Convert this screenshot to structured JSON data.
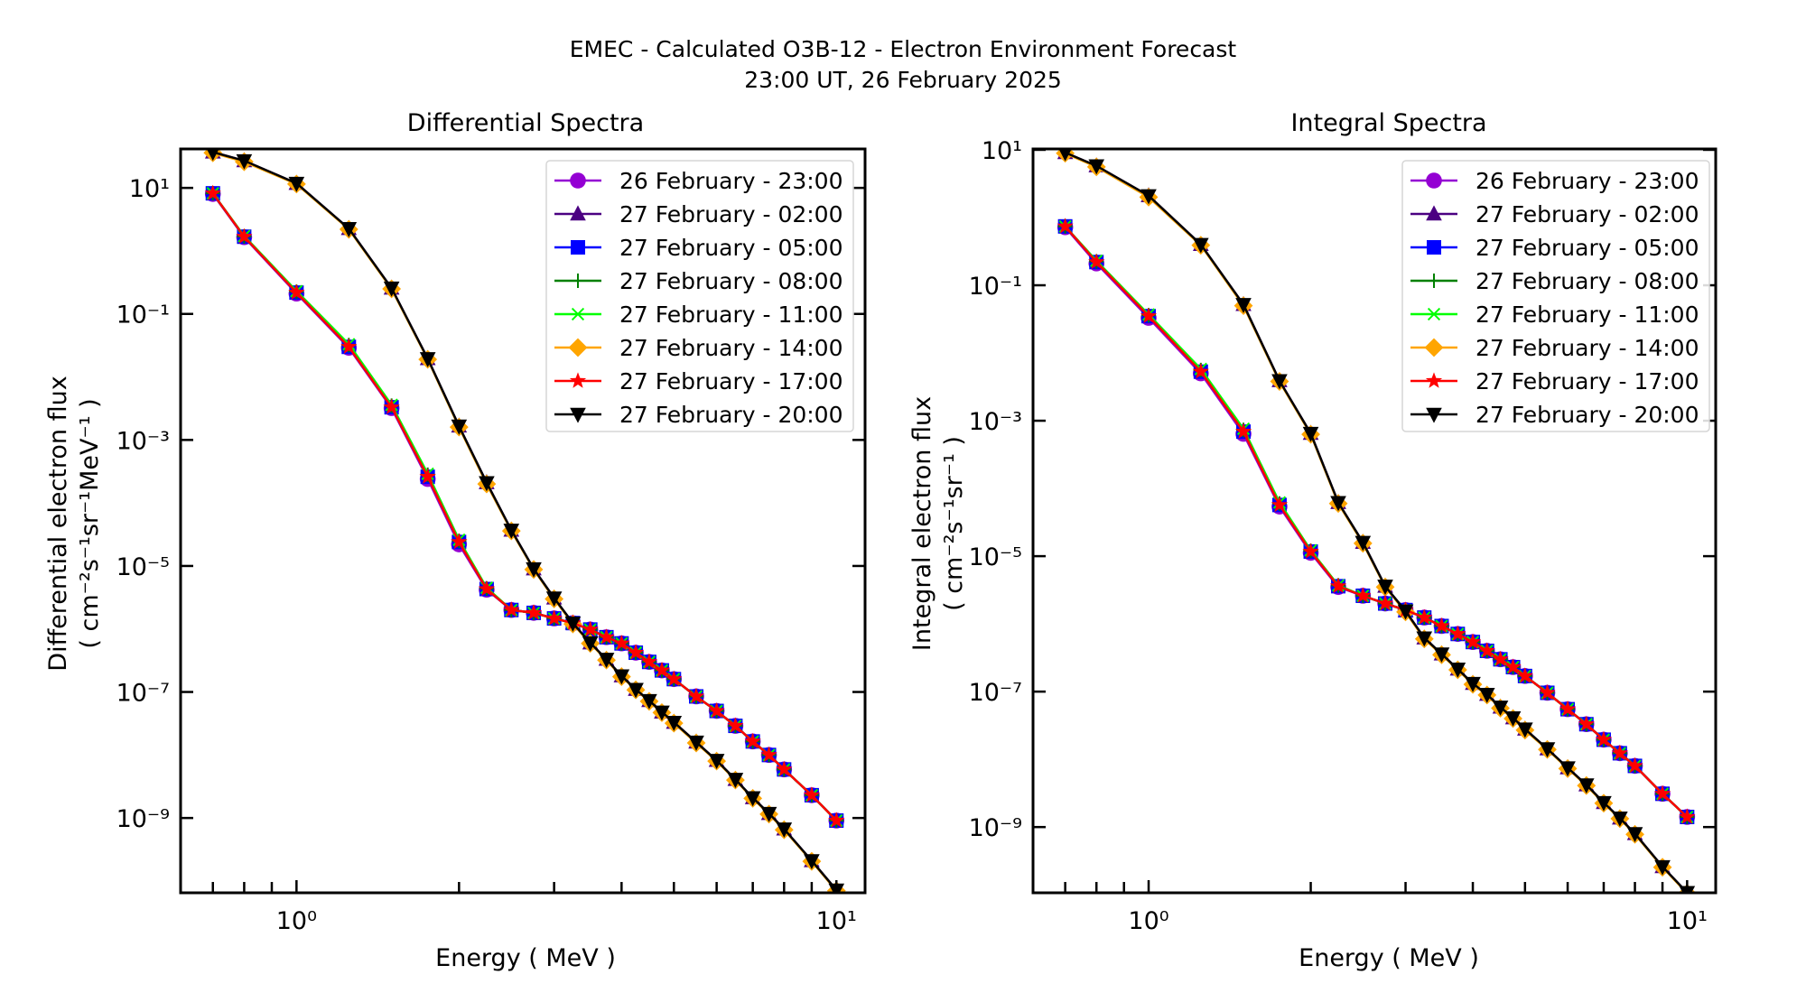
{
  "figure": {
    "title_line1": "EMEC - Calculated O3B-12 - Electron Environment Forecast",
    "title_line2": "23:00 UT, 26 February 2025"
  },
  "series_styles": [
    {
      "name": "26 February - 23:00",
      "color": "#9400D3",
      "marker": "circle"
    },
    {
      "name": "27 February - 02:00",
      "color": "#4B0082",
      "marker": "triangle-up"
    },
    {
      "name": "27 February - 05:00",
      "color": "#0000FF",
      "marker": "square"
    },
    {
      "name": "27 February - 08:00",
      "color": "#008000",
      "marker": "plus"
    },
    {
      "name": "27 February - 11:00",
      "color": "#00FF00",
      "marker": "x"
    },
    {
      "name": "27 February - 14:00",
      "color": "#FFA500",
      "marker": "diamond"
    },
    {
      "name": "27 February - 17:00",
      "color": "#FF0000",
      "marker": "star"
    },
    {
      "name": "27 February - 20:00",
      "color": "#000000",
      "marker": "triangle-down"
    }
  ],
  "chart_data": [
    {
      "type": "line",
      "title": "Differential Spectra",
      "xlabel": "Energy ( MeV )",
      "ylabel_line1": "Differential electron flux",
      "ylabel_line2": "( cm⁻²s⁻¹sr⁻¹MeV⁻¹ )",
      "xscale": "log",
      "yscale": "log",
      "xlim": [
        0.61,
        11.3
      ],
      "ylim": [
        6.5e-11,
        41.5
      ],
      "xticks": [
        {
          "value": 1,
          "label": "10⁰"
        },
        {
          "value": 10,
          "label": "10¹"
        }
      ],
      "yticks": [
        {
          "value": 10,
          "label": "10¹"
        },
        {
          "value": 0.1,
          "label": "10⁻¹"
        },
        {
          "value": 0.001,
          "label": "10⁻³"
        },
        {
          "value": 1e-05,
          "label": "10⁻⁵"
        },
        {
          "value": 1e-07,
          "label": "10⁻⁷"
        },
        {
          "value": 1e-09,
          "label": "10⁻⁹"
        }
      ],
      "grid": false,
      "legend_position": "top-right",
      "x": [
        0.7,
        0.8,
        1.0,
        1.25,
        1.5,
        1.75,
        2.0,
        2.25,
        2.5,
        2.75,
        3.0,
        3.25,
        3.5,
        3.75,
        4.0,
        4.25,
        4.5,
        4.75,
        5.0,
        5.5,
        6.0,
        6.5,
        7.0,
        7.5,
        8.0,
        9.0,
        10.0
      ],
      "series": [
        {
          "name": "26 February - 23:00",
          "values": [
            8.0,
            1.65,
            0.21,
            0.029,
            0.0032,
            0.00024,
            2.2e-05,
            4.2e-06,
            2e-06,
            1.8e-06,
            1.47e-06,
            1.24e-06,
            9.8e-07,
            7.4e-07,
            5.9e-07,
            4.2e-07,
            3e-07,
            2.2e-07,
            1.6e-07,
            8.5e-08,
            5e-08,
            2.9e-08,
            1.64e-08,
            1e-08,
            5.9e-09,
            2.3e-09,
            9.1e-10
          ]
        },
        {
          "name": "27 February - 02:00",
          "values": [
            37,
            27,
            11.8,
            2.26,
            0.257,
            0.0195,
            0.00166,
            0.00021,
            3.7e-05,
            9e-06,
            3.1e-06,
            1.24e-06,
            6e-07,
            3.3e-07,
            1.8e-07,
            1.1e-07,
            7.3e-08,
            4.8e-08,
            3.3e-08,
            1.6e-08,
            8.2e-09,
            4.1e-09,
            2.1e-09,
            1.18e-09,
            6.7e-10,
            2.1e-10,
            7.2e-11
          ]
        },
        {
          "name": "27 February - 05:00",
          "values": [
            8.2,
            1.68,
            0.218,
            0.03,
            0.0033,
            0.00026,
            2.4e-05,
            4.3e-06,
            2e-06,
            1.8e-06,
            1.47e-06,
            1.24e-06,
            9.8e-07,
            7.4e-07,
            5.9e-07,
            4.2e-07,
            3e-07,
            2.2e-07,
            1.6e-07,
            8.5e-08,
            5e-08,
            2.9e-08,
            1.64e-08,
            1e-08,
            5.9e-09,
            2.3e-09,
            9.1e-10
          ]
        },
        {
          "name": "27 February - 08:00",
          "values": [
            8.2,
            1.7,
            0.225,
            0.032,
            0.0035,
            0.00028,
            2.5e-05,
            4.4e-06,
            2e-06,
            1.8e-06,
            1.47e-06,
            1.24e-06,
            9.8e-07,
            7.4e-07,
            5.9e-07,
            4.2e-07,
            3e-07,
            2.2e-07,
            1.6e-07,
            8.5e-08,
            5e-08,
            2.9e-08,
            1.64e-08,
            1e-08,
            5.9e-09,
            2.3e-09,
            9.1e-10
          ]
        },
        {
          "name": "27 February - 11:00",
          "values": [
            8.2,
            1.72,
            0.23,
            0.033,
            0.0036,
            0.00029,
            2.6e-05,
            4.5e-06,
            2e-06,
            1.8e-06,
            1.47e-06,
            1.24e-06,
            9.8e-07,
            7.4e-07,
            5.9e-07,
            4.2e-07,
            3e-07,
            2.2e-07,
            1.6e-07,
            8.5e-08,
            5e-08,
            2.9e-08,
            1.64e-08,
            1e-08,
            5.9e-09,
            2.3e-09,
            9.1e-10
          ]
        },
        {
          "name": "27 February - 14:00",
          "values": [
            36,
            26,
            11.5,
            2.2,
            0.25,
            0.019,
            0.0016,
            0.0002,
            3.6e-05,
            8.8e-06,
            3e-06,
            1.2e-06,
            5.9e-07,
            3.2e-07,
            1.75e-07,
            1.08e-07,
            7.1e-08,
            4.7e-08,
            3.2e-08,
            1.55e-08,
            8e-09,
            4e-09,
            2.05e-09,
            1.15e-09,
            6.5e-10,
            2.05e-10,
            7e-11
          ]
        },
        {
          "name": "27 February - 17:00",
          "values": [
            8.2,
            1.68,
            0.218,
            0.03,
            0.0033,
            0.00026,
            2.4e-05,
            4.3e-06,
            2e-06,
            1.8e-06,
            1.47e-06,
            1.24e-06,
            9.8e-07,
            7.4e-07,
            5.9e-07,
            4.2e-07,
            3e-07,
            2.2e-07,
            1.6e-07,
            8.5e-08,
            5e-08,
            2.9e-08,
            1.64e-08,
            1e-08,
            5.9e-09,
            2.3e-09,
            9.1e-10
          ]
        },
        {
          "name": "27 February - 20:00",
          "values": [
            37,
            27,
            11.8,
            2.26,
            0.257,
            0.0195,
            0.00166,
            0.00021,
            3.7e-05,
            9e-06,
            3.1e-06,
            1.24e-06,
            6e-07,
            3.3e-07,
            1.8e-07,
            1.1e-07,
            7.3e-08,
            4.8e-08,
            3.3e-08,
            1.6e-08,
            8.2e-09,
            4.1e-09,
            2.1e-09,
            1.18e-09,
            6.7e-10,
            2.1e-10,
            7.2e-11
          ]
        }
      ]
    },
    {
      "type": "line",
      "title": "Integral Spectra",
      "xlabel": "Energy ( MeV )",
      "ylabel_line1": "Integral electron flux",
      "ylabel_line2": "( cm⁻²s⁻¹sr⁻¹ )",
      "xscale": "log",
      "yscale": "log",
      "xlim": [
        0.61,
        11.3
      ],
      "ylim": [
        1.07e-10,
        10.3
      ],
      "xticks": [
        {
          "value": 1,
          "label": "10⁰"
        },
        {
          "value": 10,
          "label": "10¹"
        }
      ],
      "yticks": [
        {
          "value": 10,
          "label": "10¹"
        },
        {
          "value": 0.1,
          "label": "10⁻¹"
        },
        {
          "value": 0.001,
          "label": "10⁻³"
        },
        {
          "value": 1e-05,
          "label": "10⁻⁵"
        },
        {
          "value": 1e-07,
          "label": "10⁻⁷"
        },
        {
          "value": 1e-09,
          "label": "10⁻⁹"
        }
      ],
      "grid": false,
      "legend_position": "top-right",
      "x": [
        0.7,
        0.8,
        1.0,
        1.25,
        1.5,
        1.75,
        2.0,
        2.25,
        2.5,
        2.75,
        3.0,
        3.25,
        3.5,
        3.75,
        4.0,
        4.25,
        4.5,
        4.75,
        5.0,
        5.5,
        6.0,
        6.5,
        7.0,
        7.5,
        8.0,
        9.0,
        10.0
      ],
      "series": [
        {
          "name": "26 February - 23:00",
          "values": [
            0.72,
            0.21,
            0.033,
            0.005,
            0.00064,
            5.4e-05,
            1.12e-05,
            3.5e-06,
            2.6e-06,
            2e-06,
            1.6e-06,
            1.24e-06,
            9.3e-07,
            7.1e-07,
            5.4e-07,
            4e-07,
            3e-07,
            2.3e-07,
            1.7e-07,
            9.6e-08,
            5.5e-08,
            3.3e-08,
            1.95e-08,
            1.23e-08,
            8e-09,
            3.1e-09,
            1.41e-09
          ]
        },
        {
          "name": "27 February - 02:00",
          "values": [
            9.1,
            5.8,
            2.1,
            0.4,
            0.052,
            0.0039,
            0.00065,
            6.2e-05,
            1.6e-05,
            3.6e-06,
            1.55e-06,
            6.2e-07,
            3.6e-07,
            2.15e-07,
            1.32e-07,
            9.1e-08,
            5.9e-08,
            4.1e-08,
            2.8e-08,
            1.43e-08,
            7.5e-09,
            4.2e-09,
            2.3e-09,
            1.36e-09,
            8e-10,
            2.6e-10,
            1.08e-10
          ]
        },
        {
          "name": "27 February - 05:00",
          "values": [
            0.74,
            0.22,
            0.035,
            0.0053,
            0.00069,
            5.7e-05,
            1.17e-05,
            3.6e-06,
            2.6e-06,
            2e-06,
            1.6e-06,
            1.24e-06,
            9.3e-07,
            7.1e-07,
            5.4e-07,
            4e-07,
            3e-07,
            2.3e-07,
            1.7e-07,
            9.6e-08,
            5.5e-08,
            3.3e-08,
            1.95e-08,
            1.23e-08,
            8e-09,
            3.1e-09,
            1.41e-09
          ]
        },
        {
          "name": "27 February - 08:00",
          "values": [
            0.74,
            0.225,
            0.036,
            0.0056,
            0.00073,
            6e-05,
            1.2e-05,
            3.7e-06,
            2.6e-06,
            2e-06,
            1.6e-06,
            1.24e-06,
            9.3e-07,
            7.1e-07,
            5.4e-07,
            4e-07,
            3e-07,
            2.3e-07,
            1.7e-07,
            9.6e-08,
            5.5e-08,
            3.3e-08,
            1.95e-08,
            1.23e-08,
            8e-09,
            3.1e-09,
            1.41e-09
          ]
        },
        {
          "name": "27 February - 11:00",
          "values": [
            0.74,
            0.23,
            0.037,
            0.0058,
            0.00076,
            6.2e-05,
            1.22e-05,
            3.7e-06,
            2.6e-06,
            2e-06,
            1.6e-06,
            1.24e-06,
            9.3e-07,
            7.1e-07,
            5.4e-07,
            4e-07,
            3e-07,
            2.3e-07,
            1.7e-07,
            9.6e-08,
            5.5e-08,
            3.3e-08,
            1.95e-08,
            1.23e-08,
            8e-09,
            3.1e-09,
            1.41e-09
          ]
        },
        {
          "name": "27 February - 14:00",
          "values": [
            8.9,
            5.6,
            2.0,
            0.39,
            0.05,
            0.0038,
            0.00063,
            6e-05,
            1.55e-05,
            3.5e-06,
            1.5e-06,
            6e-07,
            3.5e-07,
            2.1e-07,
            1.28e-07,
            8.9e-08,
            5.7e-08,
            4e-08,
            2.7e-08,
            1.4e-08,
            7.3e-09,
            4.1e-09,
            2.25e-09,
            1.33e-09,
            7.8e-10,
            2.55e-10,
            1.05e-10
          ]
        },
        {
          "name": "27 February - 17:00",
          "values": [
            0.74,
            0.22,
            0.035,
            0.0053,
            0.00069,
            5.7e-05,
            1.17e-05,
            3.6e-06,
            2.6e-06,
            2e-06,
            1.6e-06,
            1.24e-06,
            9.3e-07,
            7.1e-07,
            5.4e-07,
            4e-07,
            3e-07,
            2.3e-07,
            1.7e-07,
            9.6e-08,
            5.5e-08,
            3.3e-08,
            1.95e-08,
            1.23e-08,
            8e-09,
            3.1e-09,
            1.41e-09
          ]
        },
        {
          "name": "27 February - 20:00",
          "values": [
            9.1,
            5.8,
            2.1,
            0.4,
            0.052,
            0.0039,
            0.00065,
            6.2e-05,
            1.6e-05,
            3.6e-06,
            1.55e-06,
            6.2e-07,
            3.6e-07,
            2.15e-07,
            1.32e-07,
            9.1e-08,
            5.9e-08,
            4.1e-08,
            2.8e-08,
            1.43e-08,
            7.5e-09,
            4.2e-09,
            2.3e-09,
            1.36e-09,
            8e-10,
            2.6e-10,
            1.08e-10
          ]
        }
      ]
    }
  ]
}
